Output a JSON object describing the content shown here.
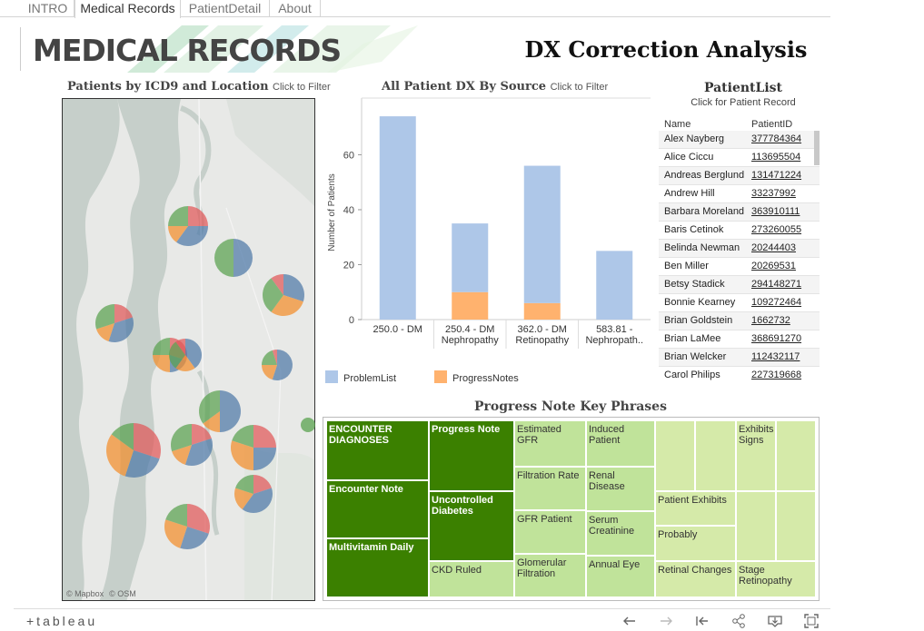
{
  "tabs": [
    {
      "label": "INTRO",
      "active": false
    },
    {
      "label": "Medical Records",
      "active": true
    },
    {
      "label": "PatientDetail",
      "active": false
    },
    {
      "label": "About",
      "active": false
    }
  ],
  "header": {
    "app_title": "MEDICAL RECORDS",
    "dashboard_title": "DX Correction Analysis"
  },
  "map": {
    "title": "Patients by ICD9 and Location",
    "hint": "Click to Filter",
    "credits": [
      "© Mapbox",
      "© OSM"
    ],
    "colors": {
      "red": "#e15759",
      "blue": "#4e79a7",
      "green": "#59a14f",
      "orange": "#f28e2b",
      "water": "#c5cec9",
      "land": "#e6e8e6"
    }
  },
  "bar_title": {
    "title": "All Patient DX By Source",
    "hint": "Click to Filter"
  },
  "chart_data": {
    "type": "bar",
    "stacked": true,
    "categories": [
      "250.0 - DM",
      "250.4 - DM Nephropathy",
      "362.0 - DM Retinopathy",
      "583.81 - Nephropath.."
    ],
    "category_lines": [
      [
        "250.0 - DM"
      ],
      [
        "250.4 - DM",
        "Nephropathy"
      ],
      [
        "362.0 - DM",
        "Retinopathy"
      ],
      [
        "583.81 -",
        "Nephropath.."
      ]
    ],
    "series": [
      {
        "name": "ProgressNotes",
        "color": "#ffb26e",
        "values": [
          0,
          10,
          6,
          0
        ]
      },
      {
        "name": "ProblemList",
        "color": "#aec7e8",
        "values": [
          74,
          25,
          50,
          25
        ]
      }
    ],
    "ylabel": "Number of Patients",
    "xlabel": "",
    "ylim": [
      0,
      78
    ],
    "yticks": [
      0,
      20,
      40,
      60
    ],
    "legend": [
      {
        "label": "ProblemList",
        "color": "#aec7e8"
      },
      {
        "label": "ProgressNotes",
        "color": "#ffb26e"
      }
    ]
  },
  "patient_list": {
    "title": "PatientList",
    "subtitle": "Click for Patient Record",
    "columns": {
      "name": "Name",
      "id": "PatientID"
    },
    "rows": [
      {
        "name": "Alex Nayberg",
        "id": "377784364"
      },
      {
        "name": "Alice Ciccu",
        "id": "113695504"
      },
      {
        "name": "Andreas Berglund",
        "id": "131471224"
      },
      {
        "name": "Andrew Hill",
        "id": "33237992"
      },
      {
        "name": "Barbara Moreland",
        "id": "363910111"
      },
      {
        "name": "Baris Cetinok",
        "id": "273260055"
      },
      {
        "name": "Belinda Newman",
        "id": "20244403"
      },
      {
        "name": "Ben Miller",
        "id": "20269531"
      },
      {
        "name": "Betsy Stadick",
        "id": "294148271"
      },
      {
        "name": "Bonnie Kearney",
        "id": "109272464"
      },
      {
        "name": "Brian Goldstein",
        "id": "1662732"
      },
      {
        "name": "Brian LaMee",
        "id": "368691270"
      },
      {
        "name": "Brian Welcker",
        "id": "112432117"
      },
      {
        "name": "Carol Philips",
        "id": "227319668"
      }
    ]
  },
  "treemap": {
    "title": "Progress Note Key Phrases",
    "cells": {
      "encounter_diagnoses": "ENCOUNTER DIAGNOSES",
      "encounter_note": "Encounter Note",
      "multivitamin_daily": "Multivitamin Daily",
      "progress_note": "Progress Note",
      "uncontrolled_diabetes": "Uncontrolled Diabetes",
      "ckd_ruled": "CKD Ruled",
      "estimated_gfr": "Estimated GFR",
      "filtration_rate": "Filtration Rate",
      "gfr_patient": "GFR Patient",
      "glomerular_filtration": "Glomerular Filtration",
      "induced_patient": "Induced Patient",
      "renal_disease": "Renal Disease",
      "serum_creatinine": "Serum Creatinine",
      "annual_eye": "Annual Eye",
      "patient_exhibits": "Patient Exhibits",
      "probably": "Probably",
      "retinal_changes": "Retinal Changes",
      "exhibits_signs": "Exhibits Signs",
      "stage_retinopathy": "Stage Retinopathy"
    }
  },
  "toolbar": {
    "logo": "+tableau",
    "icons": [
      "undo-icon",
      "redo-icon",
      "revert-icon",
      "share-icon",
      "download-icon",
      "fullscreen-icon"
    ]
  }
}
